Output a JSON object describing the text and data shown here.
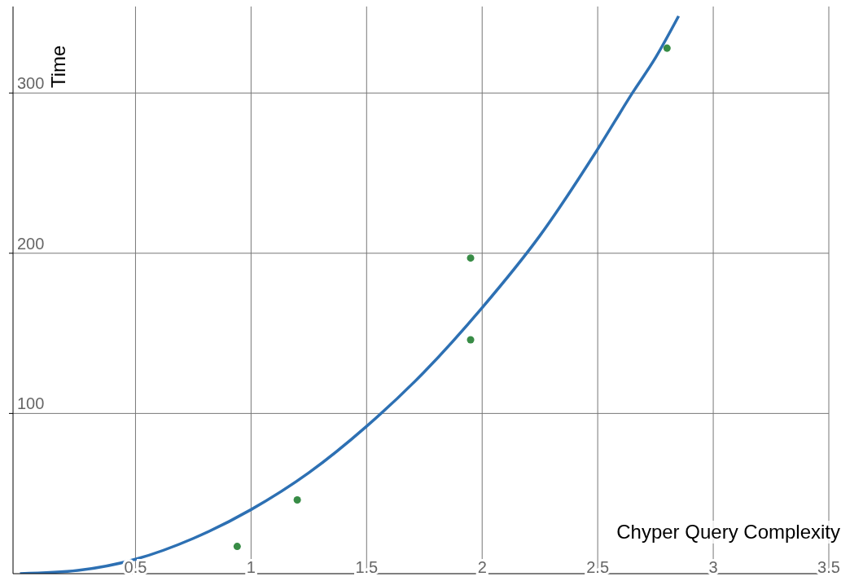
{
  "chart_data": {
    "type": "scatter",
    "xlabel": "Chyper Query Complexity",
    "ylabel": "Time",
    "xlim": [
      -0.03,
      3.5
    ],
    "ylim": [
      0,
      354
    ],
    "xticks": [
      0.5,
      1,
      1.5,
      2,
      2.5,
      3,
      3.5
    ],
    "yticks": [
      100,
      200,
      300
    ],
    "grid": true,
    "marker": "circle",
    "series": [
      {
        "type": "scatter",
        "color": "#388c46",
        "x": [
          0.94,
          1.2,
          1.95,
          1.95,
          2.8
        ],
        "values": [
          17,
          46,
          197,
          146,
          328
        ]
      },
      {
        "type": "line",
        "color": "#2d70b3",
        "marker": "none",
        "line_style": "solid",
        "x": [
          0,
          0.25,
          0.5,
          0.75,
          1,
          1.25,
          1.5,
          1.75,
          2,
          2.25,
          2.5,
          2.65,
          2.75,
          2.85
        ],
        "values": [
          0,
          2,
          9,
          22,
          40,
          63,
          92,
          126,
          166,
          211,
          265,
          300,
          322,
          348
        ]
      }
    ]
  }
}
